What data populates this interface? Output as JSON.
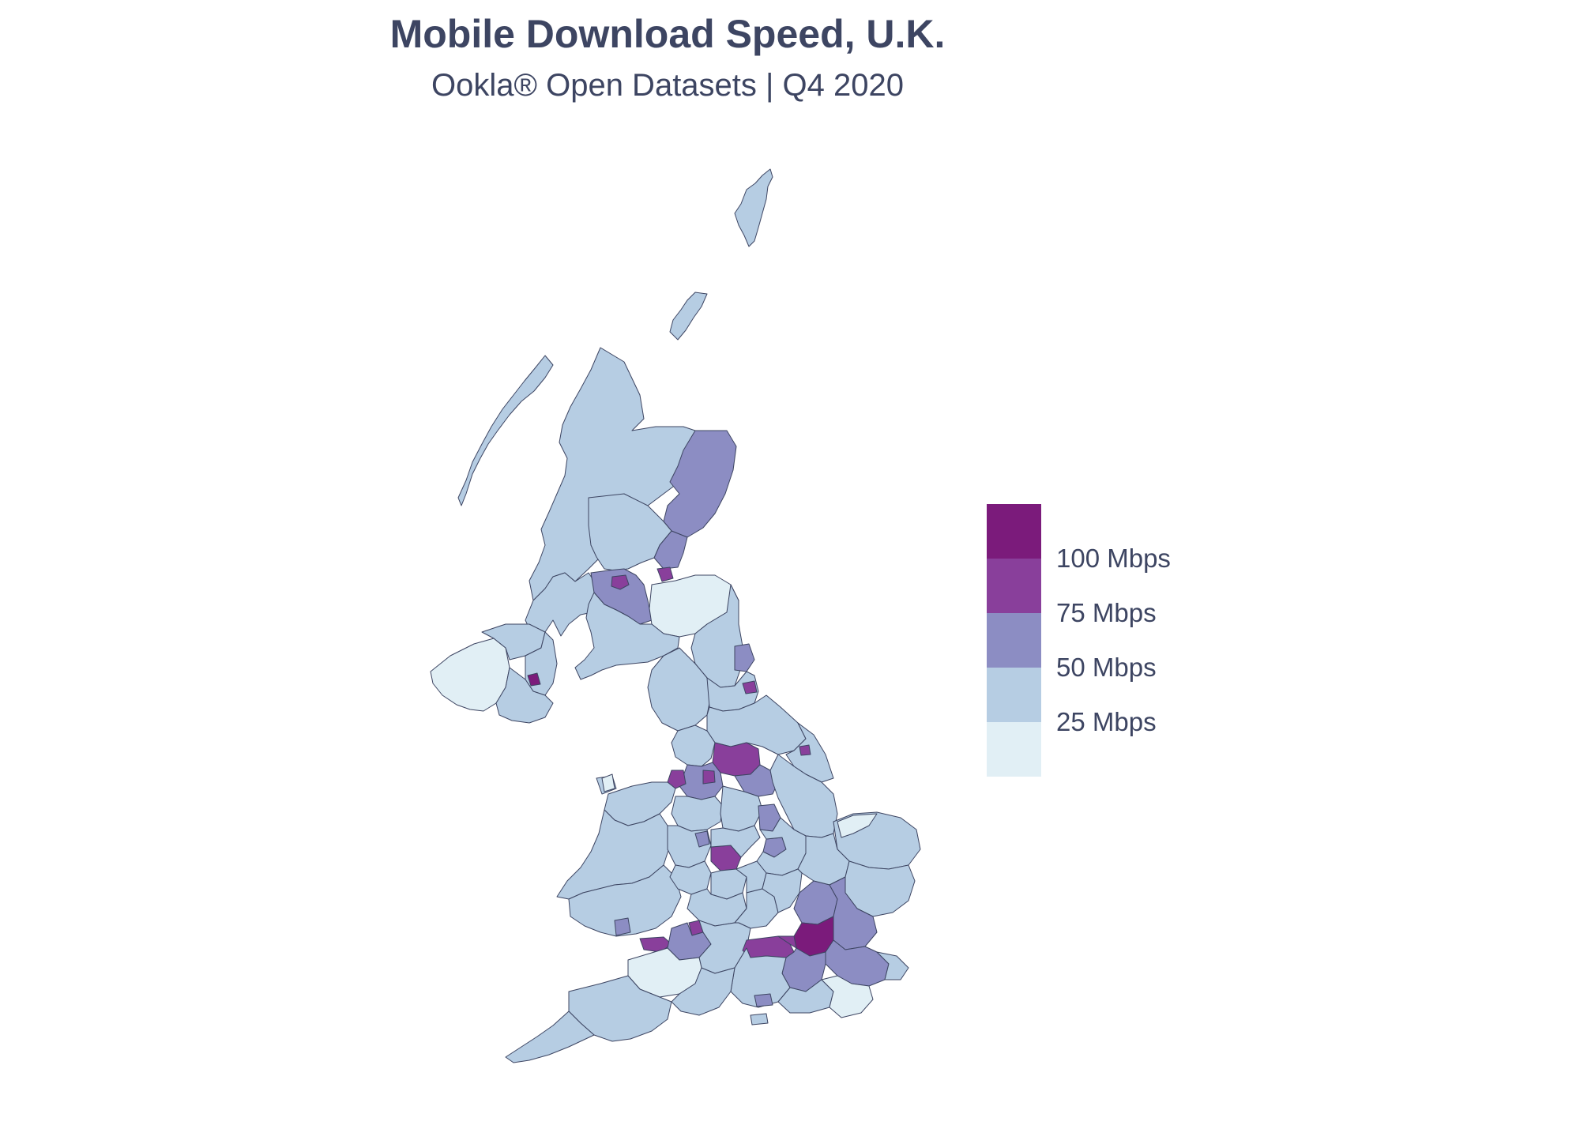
{
  "title": "Mobile Download Speed, U.K.",
  "subtitle": "Ookla® Open Datasets | Q4 2020",
  "colors": {
    "band_0_25": "#e1eff5",
    "band_25_50": "#b6cde3",
    "band_50_75": "#8c8dc3",
    "band_75_100": "#893f9b",
    "band_100_plus": "#7b1b7b",
    "border": "#3d4562"
  },
  "legend": {
    "ticks": [
      "100 Mbps",
      "75 Mbps",
      "50 Mbps",
      "25 Mbps"
    ]
  }
}
